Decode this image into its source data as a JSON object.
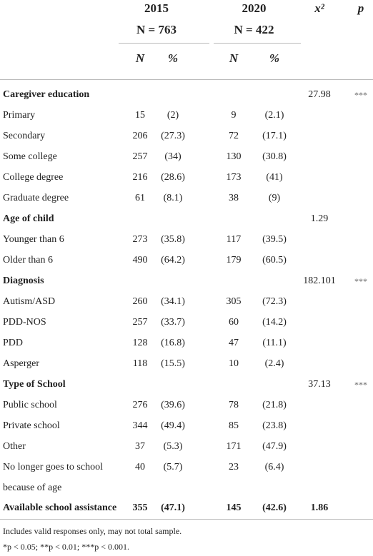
{
  "table": {
    "header": {
      "groups": [
        {
          "year": "2015",
          "n": "N = 763"
        },
        {
          "year": "2020",
          "n": "N = 422"
        }
      ],
      "stats": [
        "x²",
        "p"
      ],
      "subcolumns": [
        "N",
        "%",
        "N",
        "%"
      ]
    },
    "rows": [
      {
        "label": "Caregiver education",
        "bold": "label",
        "cells": [
          null,
          null,
          null,
          null,
          "27.98",
          "***"
        ]
      },
      {
        "label": "Primary",
        "cells": [
          "15",
          "(2)",
          "9",
          "(2.1)",
          null,
          null
        ]
      },
      {
        "label": "Secondary",
        "cells": [
          "206",
          "(27.3)",
          "72",
          "(17.1)",
          null,
          null
        ]
      },
      {
        "label": "Some college",
        "cells": [
          "257",
          "(34)",
          "130",
          "(30.8)",
          null,
          null
        ]
      },
      {
        "label": "College degree",
        "cells": [
          "216",
          "(28.6)",
          "173",
          "(41)",
          null,
          null
        ]
      },
      {
        "label": "Graduate degree",
        "cells": [
          "61",
          "(8.1)",
          "38",
          "(9)",
          null,
          null
        ]
      },
      {
        "label": "Age of child",
        "bold": "label",
        "cells": [
          null,
          null,
          null,
          null,
          "1.29",
          null
        ]
      },
      {
        "label": "Younger than 6",
        "cells": [
          "273",
          "(35.8)",
          "117",
          "(39.5)",
          null,
          null
        ]
      },
      {
        "label": "Older than 6",
        "cells": [
          "490",
          "(64.2)",
          "179",
          "(60.5)",
          null,
          null
        ]
      },
      {
        "label": "Diagnosis",
        "bold": "label",
        "cells": [
          null,
          null,
          null,
          null,
          "182.101",
          "***"
        ]
      },
      {
        "label": "Autism/ASD",
        "cells": [
          "260",
          "(34.1)",
          "305",
          "(72.3)",
          null,
          null
        ]
      },
      {
        "label": "PDD-NOS",
        "cells": [
          "257",
          "(33.7)",
          "60",
          "(14.2)",
          null,
          null
        ]
      },
      {
        "label": "PDD",
        "cells": [
          "128",
          "(16.8)",
          "47",
          "(11.1)",
          null,
          null
        ]
      },
      {
        "label": "Asperger",
        "cells": [
          "118",
          "(15.5)",
          "10",
          "(2.4)",
          null,
          null
        ]
      },
      {
        "label": "Type of School",
        "bold": "label",
        "cells": [
          null,
          null,
          null,
          null,
          "37.13",
          "***"
        ]
      },
      {
        "label": "Public school",
        "cells": [
          "276",
          "(39.6)",
          "78",
          "(21.8)",
          null,
          null
        ]
      },
      {
        "label": "Private school",
        "cells": [
          "344",
          "(49.4)",
          "85",
          "(23.8)",
          null,
          null
        ]
      },
      {
        "label": "Other",
        "cells": [
          "37",
          "(5.3)",
          "171",
          "(47.9)",
          null,
          null
        ]
      },
      {
        "label": "No longer goes to school because of age",
        "cells": [
          "40",
          "(5.7)",
          "23",
          "(6.4)",
          null,
          null
        ]
      },
      {
        "label": "Available school assistance",
        "bold": "row",
        "cells": [
          "355",
          "(47.1)",
          "145",
          "(42.6)",
          "1.86",
          null
        ]
      }
    ],
    "footnotes": [
      "Includes valid responses only, may not total sample.",
      "*p < 0.05; **p < 0.01; ***p < 0.001."
    ]
  }
}
